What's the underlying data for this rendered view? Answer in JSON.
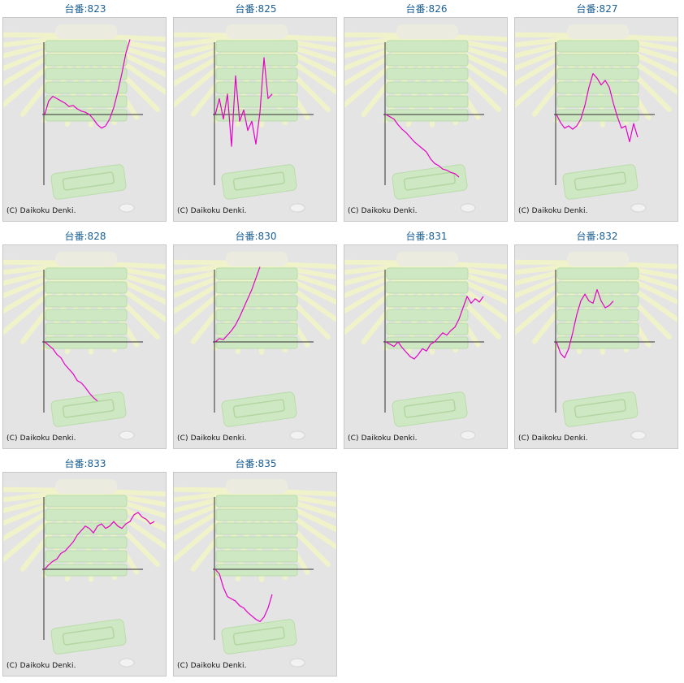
{
  "page": {
    "copyright_text": "(C) Daikoku Denki."
  },
  "colors": {
    "line": "#e600c8",
    "axis": "#303030",
    "title": "#1a5e96",
    "panel_bg": "#e4e4e4",
    "illustration_green": "#cfe8c4",
    "illustration_rays": "#f2f4c8"
  },
  "chart_data": [
    {
      "type": "line",
      "title": "台番:823",
      "y": [
        0,
        1.2,
        1.6,
        1.4,
        1.2,
        1.0,
        0.7,
        0.8,
        0.5,
        0.3,
        0.2,
        0.0,
        -0.4,
        -0.9,
        -1.2,
        -1.0,
        -0.4,
        0.6,
        2.0,
        3.6,
        5.4,
        6.6
      ]
    },
    {
      "type": "line",
      "title": "台番:825",
      "y": [
        0,
        1.4,
        -0.4,
        1.8,
        -2.8,
        3.4,
        -0.6,
        0.4,
        -1.4,
        -0.6,
        -2.6,
        0.2,
        5.0,
        1.4,
        1.8
      ]
    },
    {
      "type": "line",
      "title": "台番:826",
      "y": [
        0,
        -0.2,
        -0.4,
        -0.9,
        -1.3,
        -1.6,
        -2.0,
        -2.4,
        -2.7,
        -3.0,
        -3.3,
        -3.9,
        -4.3,
        -4.5,
        -4.8,
        -4.9,
        -5.1,
        -5.2,
        -5.5
      ]
    },
    {
      "type": "line",
      "title": "台番:827",
      "y": [
        0,
        -0.7,
        -1.2,
        -1.0,
        -1.3,
        -1.0,
        -0.4,
        0.8,
        2.4,
        3.6,
        3.2,
        2.6,
        3.0,
        2.4,
        1.0,
        -0.2,
        -1.2,
        -1.0,
        -2.4,
        -0.8,
        -2.0
      ]
    },
    {
      "type": "line",
      "title": "台番:828",
      "y": [
        0,
        -0.3,
        -0.6,
        -1.1,
        -1.4,
        -2.0,
        -2.4,
        -2.8,
        -3.4,
        -3.6,
        -4.0,
        -4.5,
        -4.9,
        -5.2
      ]
    },
    {
      "type": "line",
      "title": "台番:830",
      "y": [
        0,
        0.3,
        0.2,
        0.6,
        1.0,
        1.5,
        2.2,
        3.0,
        3.8,
        4.6,
        5.6,
        6.6
      ]
    },
    {
      "type": "line",
      "title": "台番:831",
      "y": [
        0,
        -0.2,
        -0.4,
        0.0,
        -0.5,
        -0.9,
        -1.3,
        -1.5,
        -1.1,
        -0.6,
        -0.8,
        -0.2,
        0.0,
        0.4,
        0.8,
        0.6,
        1.0,
        1.3,
        2.0,
        3.0,
        4.0,
        3.4,
        3.8,
        3.5,
        4.0
      ]
    },
    {
      "type": "line",
      "title": "台番:832",
      "y": [
        0,
        -1.0,
        -1.4,
        -0.6,
        0.8,
        2.4,
        3.6,
        4.2,
        3.6,
        3.4,
        4.6,
        3.6,
        3.0,
        3.2,
        3.6
      ]
    },
    {
      "type": "line",
      "title": "台番:833",
      "y": [
        0,
        0.4,
        0.7,
        0.9,
        1.4,
        1.6,
        2.0,
        2.4,
        3.0,
        3.4,
        3.8,
        3.6,
        3.2,
        3.8,
        4.0,
        3.6,
        3.8,
        4.2,
        3.8,
        3.6,
        4.0,
        4.2,
        4.8,
        5.0,
        4.6,
        4.4,
        4.0,
        4.2
      ]
    },
    {
      "type": "line",
      "title": "台番:835",
      "y": [
        0,
        -0.4,
        -1.6,
        -2.4,
        -2.6,
        -2.8,
        -3.2,
        -3.4,
        -3.8,
        -4.1,
        -4.4,
        -4.6,
        -4.2,
        -3.4,
        -2.2
      ]
    }
  ]
}
